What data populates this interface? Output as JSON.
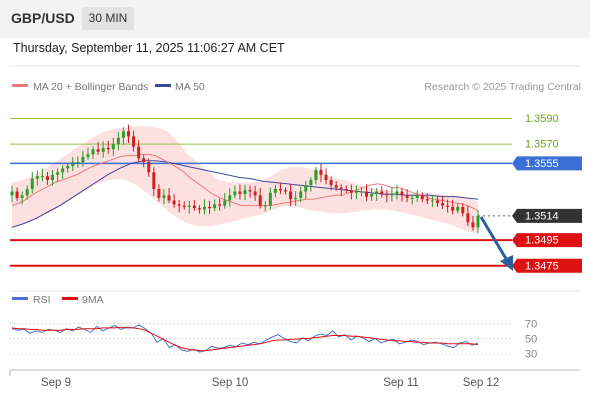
{
  "header": {
    "symbol": "GBP/USD",
    "timeframe": "30 MIN",
    "datetime": "Thursday, September 11, 2025 11:06:27 AM CET"
  },
  "colors": {
    "bull_candle": "#2a9d2a",
    "bear_candle": "#d11f1f",
    "ma20": "#ee7b7b",
    "bollinger_fill": "#fde0e0",
    "ma50": "#3a4aa0",
    "resistance_green": "#8fc24a",
    "pivot_blue": "#3a6fd8",
    "support_red": "#dd1111",
    "current_price": "#333333",
    "rsi": "#4a70d0",
    "rsi_ma": "#dd1111",
    "arrow": "#2c5f9e"
  },
  "chart_data": [
    {
      "type": "candlestick",
      "title": "",
      "legend": [
        "MA 20 + Bollinger Bands",
        "MA 50"
      ],
      "legend_position": "top-left",
      "credit": "Research © 2025 Trading Central",
      "x_tick_labels": [
        "Sep 9",
        "Sep 10",
        "Sep 11",
        "Sep 12"
      ],
      "y_range": [
        1.346,
        1.3606
      ],
      "levels": [
        {
          "label": "1.3590",
          "value": 1.359,
          "kind": "resistance"
        },
        {
          "label": "1.3570",
          "value": 1.357,
          "kind": "resistance"
        },
        {
          "label": "1.3555",
          "value": 1.3555,
          "kind": "pivot"
        },
        {
          "label": "1.3514",
          "value": 1.3514,
          "kind": "current"
        },
        {
          "label": "1.3495",
          "value": 1.3495,
          "kind": "support"
        },
        {
          "label": "1.3475",
          "value": 1.3475,
          "kind": "support"
        }
      ],
      "close_series": [
        1.3533,
        1.3528,
        1.353,
        1.3535,
        1.3543,
        1.3545,
        1.3545,
        1.3542,
        1.3546,
        1.3548,
        1.3551,
        1.3553,
        1.3556,
        1.3556,
        1.356,
        1.3562,
        1.3566,
        1.3564,
        1.3567,
        1.3566,
        1.357,
        1.3575,
        1.358,
        1.3576,
        1.3568,
        1.3559,
        1.3556,
        1.3548,
        1.3535,
        1.3528,
        1.353,
        1.3526,
        1.3523,
        1.3522,
        1.3521,
        1.3522,
        1.352,
        1.3519,
        1.3521,
        1.352,
        1.3523,
        1.3522,
        1.3526,
        1.353,
        1.3533,
        1.3531,
        1.3534,
        1.3533,
        1.353,
        1.3522,
        1.3522,
        1.3532,
        1.3535,
        1.3534,
        1.3533,
        1.3527,
        1.3528,
        1.3533,
        1.3538,
        1.3542,
        1.355,
        1.3546,
        1.3542,
        1.3538,
        1.3536,
        1.3535,
        1.3534,
        1.3532,
        1.3533,
        1.3533,
        1.3529,
        1.3531,
        1.3533,
        1.3531,
        1.353,
        1.3531,
        1.3533,
        1.353,
        1.3528,
        1.3528,
        1.353,
        1.3527,
        1.3526,
        1.3526,
        1.3524,
        1.3522,
        1.3521,
        1.3518,
        1.3521,
        1.3516,
        1.3509,
        1.3505,
        1.3514
      ],
      "ma20_series": [
        1.3522,
        1.3524,
        1.3527,
        1.3531,
        1.3534,
        1.3537,
        1.354,
        1.3542,
        1.3544,
        1.3546,
        1.3549,
        1.3552,
        1.3554,
        1.3556,
        1.3558,
        1.356,
        1.3561,
        1.3561,
        1.3562,
        1.3562,
        1.3561,
        1.3558,
        1.3555,
        1.3552,
        1.3548,
        1.3543,
        1.3539,
        1.3535,
        1.3531,
        1.3528,
        1.3526,
        1.3524,
        1.3522,
        1.3522,
        1.3522,
        1.3522,
        1.3522,
        1.3523,
        1.3524,
        1.3525,
        1.3526,
        1.3527,
        1.3527,
        1.3528,
        1.3529,
        1.353,
        1.353,
        1.3532,
        1.3534,
        1.3536,
        1.3538,
        1.3539,
        1.3538,
        1.3536,
        1.3536,
        1.3534,
        1.3532,
        1.353,
        1.3528,
        1.3527,
        1.3526,
        1.3525,
        1.3524,
        1.3523,
        1.3521,
        1.3518
      ],
      "bollinger_upper": [
        1.354,
        1.3542,
        1.3545,
        1.355,
        1.3555,
        1.356,
        1.3566,
        1.3571,
        1.3576,
        1.358,
        1.3582,
        1.3583,
        1.3584,
        1.3584,
        1.3583,
        1.358,
        1.3572,
        1.3562,
        1.3555,
        1.3548,
        1.3542,
        1.354,
        1.354,
        1.354,
        1.3541,
        1.3545,
        1.355,
        1.3552,
        1.3552,
        1.355,
        1.3547,
        1.3544,
        1.3542,
        1.354,
        1.3537,
        1.3535,
        1.3534,
        1.3533,
        1.3532,
        1.3532,
        1.3532,
        1.3531,
        1.353,
        1.353,
        1.3528,
        1.3525
      ],
      "bollinger_lower": [
        1.3505,
        1.3507,
        1.351,
        1.3514,
        1.3518,
        1.3523,
        1.3528,
        1.3533,
        1.3538,
        1.3541,
        1.3543,
        1.3542,
        1.3538,
        1.3532,
        1.3525,
        1.3518,
        1.3512,
        1.3508,
        1.3506,
        1.3506,
        1.3507,
        1.3509,
        1.3511,
        1.3513,
        1.3515,
        1.3518,
        1.3521,
        1.3522,
        1.352,
        1.3518,
        1.3517,
        1.3516,
        1.3516,
        1.3517,
        1.3518,
        1.3519,
        1.3519,
        1.3518,
        1.3516,
        1.3514,
        1.3512,
        1.351,
        1.3508,
        1.3505,
        1.3502,
        1.35
      ],
      "ma50_series": [
        1.3505,
        1.3508,
        1.3512,
        1.3517,
        1.3522,
        1.3528,
        1.3534,
        1.354,
        1.3546,
        1.3551,
        1.3555,
        1.3557,
        1.3557,
        1.3556,
        1.3554,
        1.3552,
        1.355,
        1.3548,
        1.3546,
        1.3544,
        1.3543,
        1.3541,
        1.354,
        1.3539,
        1.3538,
        1.3537,
        1.3536,
        1.3535,
        1.3534,
        1.3533,
        1.3532,
        1.3531,
        1.3531,
        1.353,
        1.353,
        1.353,
        1.3529,
        1.3529,
        1.3528,
        1.3527
      ]
    },
    {
      "type": "line",
      "title": "",
      "legend": [
        "RSI",
        "9MA"
      ],
      "legend_position": "top-left",
      "y_tick_labels": [
        "70",
        "50",
        "30"
      ],
      "y_range": [
        15,
        85
      ],
      "rsi_series": [
        63,
        61,
        62,
        57,
        60,
        58,
        62,
        61,
        58,
        63,
        60,
        65,
        62,
        58,
        66,
        60,
        64,
        67,
        62,
        65,
        64,
        68,
        63,
        57,
        45,
        50,
        38,
        42,
        35,
        33,
        36,
        32,
        34,
        40,
        37,
        38,
        41,
        39,
        44,
        42,
        45,
        43,
        48,
        52,
        55,
        50,
        46,
        44,
        51,
        47,
        53,
        56,
        54,
        60,
        52,
        55,
        48,
        53,
        51,
        46,
        50,
        44,
        47,
        49,
        43,
        45,
        48,
        46,
        42,
        44,
        45,
        43,
        40,
        38,
        44,
        46,
        41,
        44
      ],
      "ma9_series": [
        64,
        63,
        63,
        62,
        62,
        61,
        61,
        61,
        61,
        62,
        62,
        62,
        63,
        63,
        63,
        64,
        64,
        64,
        65,
        64,
        64,
        63,
        61,
        57,
        53,
        49,
        45,
        41,
        38,
        36,
        35,
        34,
        34,
        35,
        36,
        37,
        38,
        39,
        40,
        41,
        42,
        43,
        45,
        47,
        48,
        48,
        49,
        49,
        50,
        50,
        51,
        52,
        53,
        54,
        54,
        54,
        53,
        53,
        52,
        51,
        50,
        49,
        48,
        47,
        47,
        46,
        46,
        45,
        45,
        44,
        44,
        44,
        43,
        43,
        43,
        43,
        43,
        42
      ]
    }
  ]
}
